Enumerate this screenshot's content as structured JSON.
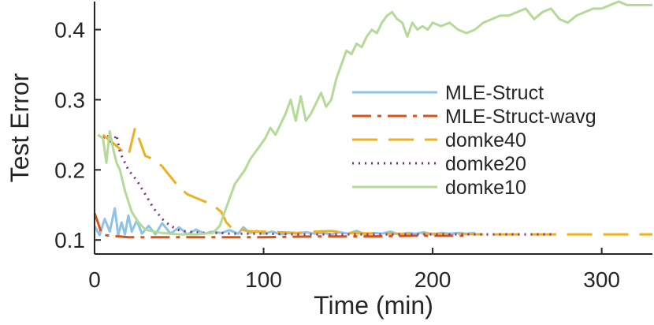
{
  "chart_data": {
    "type": "line",
    "xlabel": "Time (min)",
    "ylabel": "Test Error",
    "xlim": [
      0,
      330
    ],
    "ylim": [
      0.08,
      0.44
    ],
    "xticks": [
      0,
      100,
      200,
      300
    ],
    "xtick_labels": [
      "0",
      "100",
      "200",
      "300"
    ],
    "yticks": [
      0.1,
      0.2,
      0.3,
      0.4
    ],
    "ytick_labels": [
      "0.1",
      "0.2",
      "0.3",
      "0.4"
    ],
    "grid": false,
    "legend_position": "center-right",
    "series": [
      {
        "name": "MLE-Struct",
        "color": "#8ec3e8",
        "dash": "solid",
        "x": [
          0,
          3,
          6,
          9,
          12,
          14,
          16,
          18,
          20,
          22,
          25,
          28,
          32,
          36,
          40,
          45,
          50,
          55,
          60,
          65,
          70,
          75,
          80,
          85,
          88,
          92,
          96,
          100,
          105,
          110,
          115,
          120,
          125,
          130,
          135,
          140,
          145,
          150,
          155,
          160,
          165,
          170,
          175,
          180,
          185,
          190,
          195,
          200,
          205,
          210,
          215,
          220,
          225
        ],
        "y": [
          0.12,
          0.107,
          0.13,
          0.112,
          0.145,
          0.107,
          0.125,
          0.108,
          0.135,
          0.112,
          0.128,
          0.109,
          0.12,
          0.108,
          0.124,
          0.109,
          0.118,
          0.108,
          0.115,
          0.109,
          0.112,
          0.11,
          0.114,
          0.109,
          0.118,
          0.11,
          0.113,
          0.109,
          0.112,
          0.108,
          0.11,
          0.109,
          0.111,
          0.109,
          0.11,
          0.108,
          0.111,
          0.109,
          0.113,
          0.108,
          0.11,
          0.109,
          0.112,
          0.108,
          0.11,
          0.109,
          0.111,
          0.108,
          0.11,
          0.109,
          0.11,
          0.109,
          0.11
        ]
      },
      {
        "name": "MLE-Struct-wavg",
        "color": "#d95319",
        "dash": "24 8 5 8",
        "x": [
          0,
          2,
          4,
          6,
          10,
          15,
          20,
          30,
          40,
          60,
          80,
          100,
          130,
          160,
          190,
          220
        ],
        "y": [
          0.138,
          0.125,
          0.11,
          0.107,
          0.106,
          0.105,
          0.104,
          0.104,
          0.104,
          0.104,
          0.104,
          0.104,
          0.105,
          0.105,
          0.106,
          0.106
        ]
      },
      {
        "name": "domke40",
        "color": "#edb120",
        "dash": "32 14",
        "x": [
          5,
          10,
          15,
          20,
          24,
          27,
          30,
          35,
          40,
          45,
          50,
          55,
          60,
          65,
          70,
          75,
          78,
          82,
          86,
          90,
          95,
          100,
          110,
          120,
          130,
          140,
          150,
          170,
          200,
          230,
          260,
          290,
          310,
          330
        ],
        "y": [
          0.25,
          0.24,
          0.23,
          0.22,
          0.26,
          0.24,
          0.22,
          0.215,
          0.205,
          0.19,
          0.175,
          0.165,
          0.16,
          0.155,
          0.15,
          0.14,
          0.125,
          0.115,
          0.115,
          0.113,
          0.112,
          0.112,
          0.111,
          0.11,
          0.112,
          0.113,
          0.11,
          0.109,
          0.109,
          0.108,
          0.108,
          0.108,
          0.108,
          0.108
        ]
      },
      {
        "name": "domke20",
        "color": "#7e2f8e",
        "dash": "2 6",
        "x": [
          5,
          8,
          10,
          13,
          15,
          18,
          20,
          25,
          30,
          35,
          40,
          45,
          50,
          55,
          60,
          65,
          70,
          75,
          80,
          90,
          100,
          120,
          140,
          160,
          180,
          200,
          220,
          240,
          260,
          273
        ],
        "y": [
          0.245,
          0.25,
          0.235,
          0.25,
          0.225,
          0.21,
          0.2,
          0.185,
          0.165,
          0.145,
          0.13,
          0.12,
          0.114,
          0.112,
          0.111,
          0.11,
          0.11,
          0.11,
          0.109,
          0.109,
          0.109,
          0.108,
          0.108,
          0.108,
          0.108,
          0.108,
          0.108,
          0.108,
          0.108,
          0.108
        ]
      },
      {
        "name": "domke10",
        "color": "#b5da98",
        "dash": "solid",
        "x": [
          2,
          5,
          7,
          9,
          11,
          13,
          15,
          18,
          22,
          26,
          30,
          35,
          40,
          45,
          50,
          55,
          60,
          65,
          70,
          74,
          77,
          80,
          83,
          86,
          89,
          92,
          95,
          98,
          101,
          104,
          107,
          110,
          113,
          116,
          119,
          122,
          125,
          128,
          131,
          134,
          137,
          140,
          143,
          146,
          149,
          152,
          155,
          158,
          161,
          164,
          167,
          170,
          173,
          176,
          179,
          182,
          185,
          188,
          191,
          194,
          197,
          200,
          205,
          210,
          215,
          220,
          225,
          230,
          235,
          240,
          245,
          250,
          255,
          260,
          265,
          270,
          275,
          280,
          285,
          290,
          295,
          300,
          305,
          310,
          315,
          320,
          325,
          330
        ],
        "y": [
          0.25,
          0.245,
          0.21,
          0.255,
          0.23,
          0.21,
          0.2,
          0.17,
          0.14,
          0.125,
          0.115,
          0.112,
          0.11,
          0.109,
          0.108,
          0.108,
          0.108,
          0.109,
          0.11,
          0.12,
          0.14,
          0.16,
          0.18,
          0.19,
          0.2,
          0.215,
          0.225,
          0.235,
          0.245,
          0.26,
          0.25,
          0.265,
          0.28,
          0.3,
          0.27,
          0.305,
          0.27,
          0.28,
          0.295,
          0.31,
          0.29,
          0.3,
          0.33,
          0.35,
          0.37,
          0.365,
          0.38,
          0.375,
          0.39,
          0.4,
          0.395,
          0.41,
          0.42,
          0.425,
          0.415,
          0.41,
          0.39,
          0.41,
          0.4,
          0.405,
          0.4,
          0.41,
          0.405,
          0.41,
          0.4,
          0.395,
          0.4,
          0.41,
          0.415,
          0.42,
          0.42,
          0.425,
          0.43,
          0.415,
          0.425,
          0.43,
          0.415,
          0.41,
          0.42,
          0.425,
          0.43,
          0.43,
          0.435,
          0.44,
          0.435,
          0.435,
          0.435,
          0.435
        ]
      }
    ]
  }
}
